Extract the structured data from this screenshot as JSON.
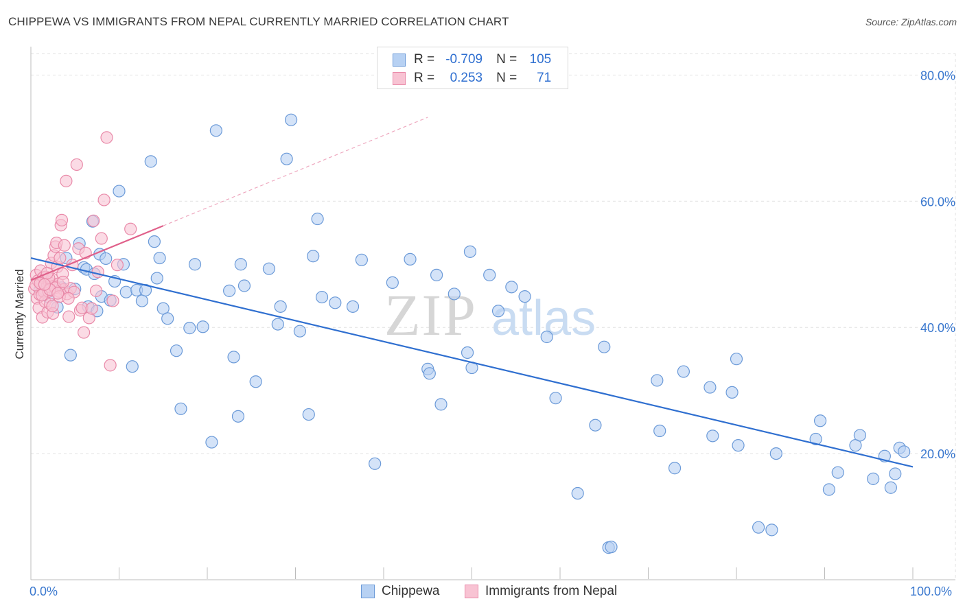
{
  "header": {
    "title": "CHIPPEWA VS IMMIGRANTS FROM NEPAL CURRENTLY MARRIED CORRELATION CHART",
    "source": "Source: ZipAtlas.com"
  },
  "watermark": {
    "zip": "ZIP",
    "atlas": "atlas"
  },
  "legend": {
    "rows": [
      {
        "r_label": "R =",
        "r_value": "-0.709",
        "n_label": "N =",
        "n_value": "105"
      },
      {
        "r_label": "R =",
        "r_value": "0.253",
        "n_label": "N =",
        "n_value": "71"
      }
    ]
  },
  "colors": {
    "blue_fill": "#b7d1f3",
    "blue_stroke": "#6b9ad8",
    "blue_line": "#2f6fd0",
    "pink_fill": "#f8c3d3",
    "pink_stroke": "#e98aa9",
    "pink_line": "#e0608a",
    "grid": "#e2e2e2",
    "tick_text": "#3a78cf"
  },
  "chart_data": {
    "type": "scatter",
    "title": "CHIPPEWA VS IMMIGRANTS FROM NEPAL CURRENTLY MARRIED CORRELATION CHART",
    "xlabel": "",
    "ylabel": "Currently Married",
    "xlim": [
      0,
      100
    ],
    "ylim": [
      0,
      84.5
    ],
    "x_tick_labels": [
      "0.0%",
      "100.0%"
    ],
    "y_ticks": [
      20,
      40,
      60,
      80
    ],
    "y_tick_labels": [
      "20.0%",
      "40.0%",
      "60.0%",
      "80.0%"
    ],
    "grid": true,
    "series": [
      {
        "name": "Chippewa",
        "r": -0.709,
        "n": 105,
        "trend": {
          "x": [
            0,
            100
          ],
          "y": [
            51.0,
            17.9
          ]
        },
        "points": [
          [
            1.0,
            45.9
          ],
          [
            1.5,
            47.2
          ],
          [
            2.0,
            44.8
          ],
          [
            3.0,
            43.2
          ],
          [
            3.5,
            46.3
          ],
          [
            4.0,
            51.0
          ],
          [
            4.5,
            35.6
          ],
          [
            5.0,
            46.1
          ],
          [
            5.5,
            53.3
          ],
          [
            6.0,
            49.5
          ],
          [
            6.3,
            49.2
          ],
          [
            6.5,
            43.3
          ],
          [
            7.0,
            56.8
          ],
          [
            7.5,
            42.6
          ],
          [
            7.8,
            51.6
          ],
          [
            8.0,
            44.9
          ],
          [
            8.5,
            50.9
          ],
          [
            9.0,
            44.3
          ],
          [
            9.5,
            47.3
          ],
          [
            10.0,
            61.6
          ],
          [
            10.5,
            50.0
          ],
          [
            10.8,
            45.6
          ],
          [
            11.5,
            33.8
          ],
          [
            12.0,
            45.9
          ],
          [
            12.6,
            44.2
          ],
          [
            13.0,
            45.9
          ],
          [
            13.6,
            66.3
          ],
          [
            14.0,
            53.6
          ],
          [
            14.3,
            47.8
          ],
          [
            14.6,
            51.0
          ],
          [
            15.0,
            43.0
          ],
          [
            15.5,
            41.4
          ],
          [
            16.5,
            36.3
          ],
          [
            17.0,
            27.1
          ],
          [
            18.0,
            39.9
          ],
          [
            18.6,
            50.0
          ],
          [
            19.5,
            40.1
          ],
          [
            20.5,
            21.8
          ],
          [
            21.0,
            71.2
          ],
          [
            22.5,
            45.8
          ],
          [
            23.0,
            35.3
          ],
          [
            23.5,
            25.9
          ],
          [
            23.8,
            50.0
          ],
          [
            24.2,
            46.6
          ],
          [
            25.5,
            31.4
          ],
          [
            27.0,
            49.3
          ],
          [
            28.0,
            40.5
          ],
          [
            28.3,
            43.3
          ],
          [
            29.0,
            66.7
          ],
          [
            29.5,
            72.9
          ],
          [
            30.5,
            39.4
          ],
          [
            31.5,
            26.2
          ],
          [
            32.0,
            51.3
          ],
          [
            32.5,
            57.2
          ],
          [
            33.0,
            44.8
          ],
          [
            34.5,
            43.9
          ],
          [
            36.5,
            43.3
          ],
          [
            37.5,
            50.7
          ],
          [
            39.0,
            18.4
          ],
          [
            41.0,
            47.1
          ],
          [
            43.0,
            50.8
          ],
          [
            45.0,
            33.4
          ],
          [
            45.2,
            32.7
          ],
          [
            46.0,
            48.3
          ],
          [
            46.5,
            27.8
          ],
          [
            48.0,
            45.3
          ],
          [
            49.5,
            36.0
          ],
          [
            49.8,
            52.0
          ],
          [
            50.0,
            33.6
          ],
          [
            52.0,
            48.3
          ],
          [
            53.0,
            42.6
          ],
          [
            54.5,
            46.4
          ],
          [
            56.0,
            44.9
          ],
          [
            58.5,
            38.5
          ],
          [
            59.5,
            28.8
          ],
          [
            62.0,
            13.7
          ],
          [
            64.0,
            24.5
          ],
          [
            65.0,
            36.9
          ],
          [
            65.5,
            5.1
          ],
          [
            65.8,
            5.2
          ],
          [
            71.0,
            31.6
          ],
          [
            71.3,
            23.6
          ],
          [
            73.0,
            17.7
          ],
          [
            74.0,
            33.0
          ],
          [
            77.0,
            30.5
          ],
          [
            77.3,
            22.8
          ],
          [
            79.5,
            29.7
          ],
          [
            80.0,
            35.0
          ],
          [
            80.2,
            21.3
          ],
          [
            82.5,
            8.3
          ],
          [
            84.0,
            7.9
          ],
          [
            84.5,
            20.0
          ],
          [
            89.0,
            22.3
          ],
          [
            89.5,
            25.2
          ],
          [
            90.5,
            14.3
          ],
          [
            91.5,
            17.0
          ],
          [
            93.5,
            21.3
          ],
          [
            94.0,
            22.9
          ],
          [
            95.5,
            16.0
          ],
          [
            96.8,
            19.6
          ],
          [
            97.5,
            14.6
          ],
          [
            98.0,
            16.8
          ],
          [
            98.5,
            20.9
          ],
          [
            99.0,
            20.3
          ],
          [
            7.2,
            48.5
          ]
        ]
      },
      {
        "name": "Immigrants from Nepal",
        "r": 0.253,
        "n": 71,
        "trend": {
          "x": [
            0,
            15
          ],
          "y": [
            47.5,
            56.1
          ]
        },
        "trend_extension": {
          "x": [
            15,
            45
          ],
          "y": [
            56.1,
            73.3
          ]
        },
        "points": [
          [
            0.4,
            46.1
          ],
          [
            0.6,
            48.3
          ],
          [
            0.7,
            44.6
          ],
          [
            0.8,
            47.4
          ],
          [
            0.9,
            43.1
          ],
          [
            1.0,
            45.2
          ],
          [
            1.1,
            49.0
          ],
          [
            1.2,
            46.9
          ],
          [
            1.3,
            41.6
          ],
          [
            1.4,
            47.9
          ],
          [
            1.5,
            45.6
          ],
          [
            1.6,
            44.1
          ],
          [
            1.7,
            48.0
          ],
          [
            1.8,
            46.4
          ],
          [
            1.9,
            42.4
          ],
          [
            2.0,
            45.7
          ],
          [
            2.1,
            47.1
          ],
          [
            2.2,
            43.7
          ],
          [
            2.3,
            50.2
          ],
          [
            2.4,
            47.7
          ],
          [
            2.5,
            42.2
          ],
          [
            2.6,
            51.4
          ],
          [
            2.7,
            46.6
          ],
          [
            2.8,
            52.8
          ],
          [
            2.9,
            53.4
          ],
          [
            3.0,
            49.6
          ],
          [
            3.1,
            46.9
          ],
          [
            3.2,
            45.7
          ],
          [
            3.3,
            51.0
          ],
          [
            3.4,
            56.2
          ],
          [
            3.5,
            57.0
          ],
          [
            3.6,
            48.5
          ],
          [
            3.7,
            46.0
          ],
          [
            3.8,
            53.0
          ],
          [
            4.0,
            63.2
          ],
          [
            4.1,
            45.3
          ],
          [
            4.3,
            41.7
          ],
          [
            4.5,
            46.2
          ],
          [
            4.7,
            49.9
          ],
          [
            4.9,
            45.6
          ],
          [
            5.2,
            65.8
          ],
          [
            5.4,
            52.5
          ],
          [
            5.6,
            42.7
          ],
          [
            5.8,
            43.1
          ],
          [
            6.0,
            39.2
          ],
          [
            6.2,
            51.8
          ],
          [
            6.6,
            41.5
          ],
          [
            6.9,
            43.0
          ],
          [
            7.1,
            56.9
          ],
          [
            7.4,
            45.8
          ],
          [
            7.6,
            48.8
          ],
          [
            8.0,
            54.1
          ],
          [
            8.3,
            60.2
          ],
          [
            8.6,
            70.1
          ],
          [
            9.0,
            34.0
          ],
          [
            9.3,
            44.2
          ],
          [
            9.8,
            49.9
          ],
          [
            11.3,
            55.6
          ],
          [
            2.05,
            47.8
          ],
          [
            1.25,
            45.1
          ],
          [
            2.75,
            46.3
          ],
          [
            3.25,
            44.9
          ],
          [
            0.55,
            46.7
          ],
          [
            1.85,
            48.6
          ],
          [
            2.45,
            43.4
          ],
          [
            3.65,
            47.2
          ],
          [
            4.25,
            44.6
          ],
          [
            1.05,
            47.0
          ],
          [
            2.15,
            46.0
          ],
          [
            3.05,
            45.4
          ],
          [
            1.55,
            46.8
          ]
        ]
      }
    ]
  }
}
